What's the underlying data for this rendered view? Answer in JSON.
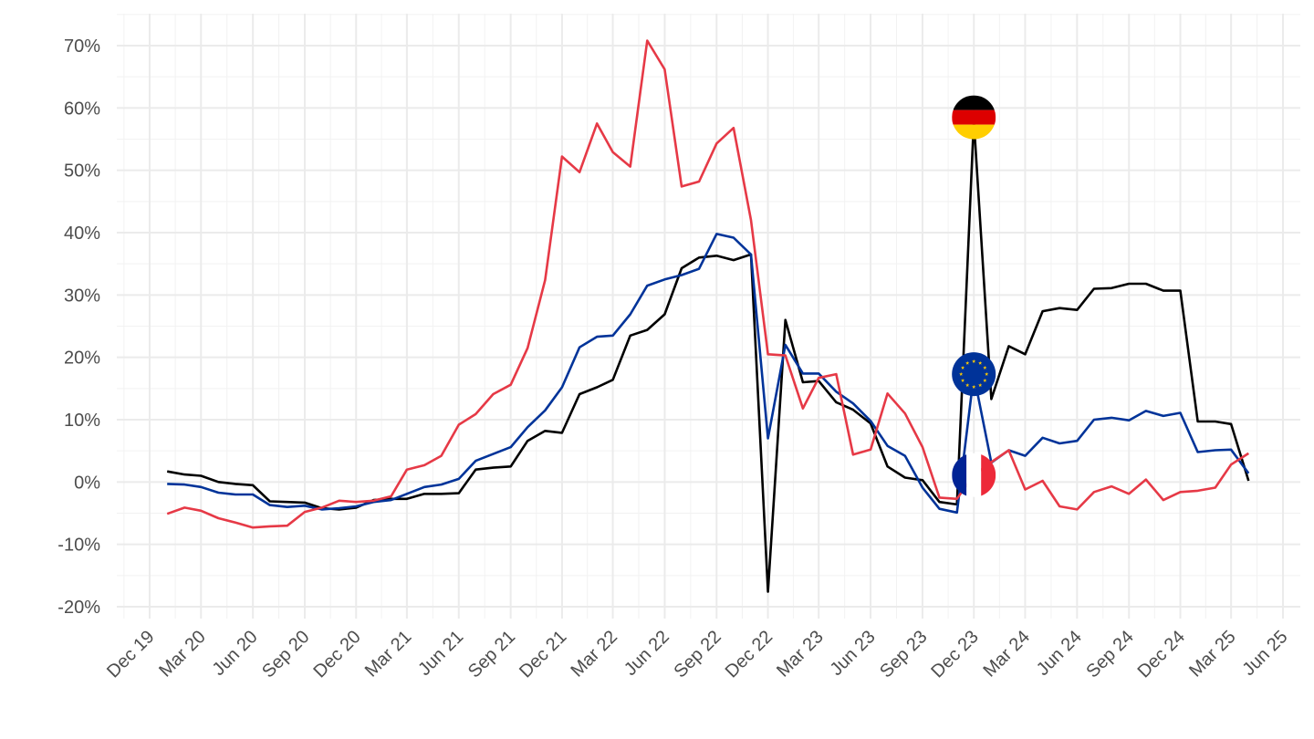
{
  "chart_data": {
    "type": "line",
    "title": "",
    "xlabel": "",
    "ylabel": "",
    "ylim": [
      -20,
      70
    ],
    "y_ticks": [
      -20,
      -10,
      0,
      10,
      20,
      30,
      40,
      50,
      60,
      70
    ],
    "y_tick_labels": [
      "-20%",
      "-10%",
      "0%",
      "10%",
      "20%",
      "30%",
      "40%",
      "50%",
      "60%",
      "70%"
    ],
    "x_ticks": [
      "2019-12-01",
      "2020-03-01",
      "2020-06-01",
      "2020-09-01",
      "2020-12-01",
      "2021-03-01",
      "2021-06-01",
      "2021-09-01",
      "2021-12-01",
      "2022-03-01",
      "2022-06-01",
      "2022-09-01",
      "2022-12-01",
      "2023-03-01",
      "2023-06-01",
      "2023-09-01",
      "2023-12-01",
      "2024-03-01",
      "2024-06-01",
      "2024-09-01",
      "2024-12-01",
      "2025-03-01",
      "2025-06-01"
    ],
    "x_tick_labels": [
      "Dec 19",
      "Mar 20",
      "Jun 20",
      "Sep 20",
      "Dec 20",
      "Mar 21",
      "Jun 21",
      "Sep 21",
      "Dec 21",
      "Mar 22",
      "Jun 22",
      "Sep 22",
      "Dec 22",
      "Mar 23",
      "Jun 23",
      "Sep 23",
      "Dec 23",
      "Mar 24",
      "Jun 24",
      "Sep 24",
      "Dec 24",
      "Mar 25",
      "Jun 25"
    ],
    "grid": true,
    "x_start": "2020-01",
    "series": [
      {
        "flag": "germany",
        "color": "#000000",
        "values": [
          1.7,
          1.2,
          1.0,
          0.0,
          -0.3,
          -0.5,
          -3.1,
          -3.2,
          -3.3,
          -4.2,
          -4.4,
          -4.1,
          -2.9,
          -2.7,
          -2.7,
          -1.9,
          -1.9,
          -1.8,
          2.0,
          2.3,
          2.5,
          6.6,
          8.2,
          7.9,
          14.1,
          15.2,
          16.4,
          23.5,
          24.4,
          26.9,
          34.3,
          36.0,
          36.3,
          35.6,
          36.5,
          -17.6,
          26.0,
          16.0,
          16.2,
          12.8,
          11.6,
          9.4,
          2.5,
          0.7,
          0.3,
          -3.2,
          -3.6,
          58.0,
          13.3,
          21.8,
          20.5,
          27.4,
          27.9,
          27.6,
          31.0,
          31.1,
          31.8,
          31.8,
          30.7,
          30.7,
          9.7,
          9.7,
          9.3,
          0.2
        ]
      },
      {
        "flag": "eu",
        "color": "#003399",
        "values": [
          -0.3,
          -0.4,
          -0.8,
          -1.7,
          -2.0,
          -2.0,
          -3.7,
          -4.0,
          -3.8,
          -4.4,
          -4.2,
          -3.9,
          -3.2,
          -2.9,
          -1.9,
          -0.8,
          -0.4,
          0.5,
          3.4,
          4.5,
          5.6,
          8.8,
          11.5,
          15.2,
          21.6,
          23.3,
          23.5,
          26.9,
          31.5,
          32.5,
          33.2,
          34.2,
          39.8,
          39.2,
          36.5,
          7.0,
          22.0,
          17.4,
          17.4,
          14.5,
          12.6,
          9.8,
          5.8,
          4.2,
          -0.9,
          -4.3,
          -4.9,
          17.2,
          3.1,
          5.1,
          4.2,
          7.1,
          6.2,
          6.6,
          10.0,
          10.3,
          9.9,
          11.4,
          10.6,
          11.1,
          4.8,
          5.1,
          5.2,
          1.4
        ]
      },
      {
        "flag": "france",
        "color": "#e63946",
        "values": [
          -5.1,
          -4.1,
          -4.6,
          -5.8,
          -6.5,
          -7.3,
          -7.1,
          -7.0,
          -4.8,
          -4.1,
          -3.0,
          -3.2,
          -3.0,
          -2.3,
          2.0,
          2.7,
          4.2,
          9.2,
          10.9,
          14.1,
          15.6,
          21.5,
          32.4,
          52.2,
          49.7,
          57.5,
          52.9,
          50.6,
          70.8,
          66.2,
          47.4,
          48.2,
          54.3,
          56.8,
          42.0,
          20.5,
          20.3,
          11.8,
          16.7,
          17.3,
          4.4,
          5.2,
          14.2,
          11.0,
          5.6,
          -2.5,
          -2.7,
          1.1,
          3.2,
          5.1,
          -1.2,
          0.2,
          -3.9,
          -4.4,
          -1.6,
          -0.7,
          -1.9,
          0.4,
          -2.9,
          -1.6,
          -1.4,
          -0.9,
          2.8,
          4.6
        ]
      }
    ],
    "flag_markers": [
      {
        "flag": "germany",
        "date": "2023-12",
        "value": 58.5
      },
      {
        "flag": "eu",
        "date": "2023-12",
        "value": 17.3
      },
      {
        "flag": "france",
        "date": "2023-12",
        "value": 1.1
      }
    ]
  }
}
